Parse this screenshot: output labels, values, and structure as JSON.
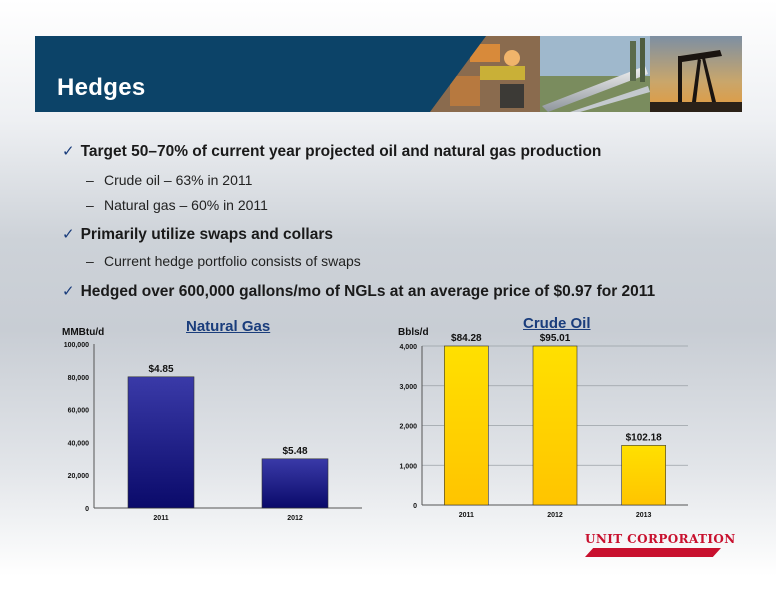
{
  "header": {
    "title": "Hedges"
  },
  "bullets": [
    {
      "level": 1,
      "text": "Target 50–70% of current year projected oil and natural gas production"
    },
    {
      "level": 2,
      "text": "Crude oil – 63% in 2011"
    },
    {
      "level": 2,
      "text": "Natural gas – 60% in 2011"
    },
    {
      "level": 1,
      "text": "Primarily utilize swaps and collars"
    },
    {
      "level": 2,
      "text": "Current hedge portfolio consists of swaps"
    },
    {
      "level": 1,
      "text": "Hedged over 600,000 gallons/mo of NGLs at an average price of $0.97 for 2011"
    }
  ],
  "chart_data": [
    {
      "type": "bar",
      "title": "Natural Gas",
      "ylabel": "MMBtu/d",
      "categories": [
        "2011",
        "2012"
      ],
      "values": [
        80000,
        30000
      ],
      "data_labels": [
        "$4.85",
        "$5.48"
      ],
      "ylim": [
        0,
        100000
      ],
      "yticks": [
        "0",
        "20,000",
        "40,000",
        "60,000",
        "80,000",
        "100,000"
      ],
      "grid": false,
      "colors": {
        "top": "#3a3aa8",
        "bottom": "#0a0a6a"
      }
    },
    {
      "type": "bar",
      "title": "Crude Oil",
      "ylabel": "Bbls/d",
      "categories": [
        "2011",
        "2012",
        "2013"
      ],
      "values": [
        4000,
        4000,
        1500
      ],
      "data_labels": [
        "$84.28",
        "$95.01",
        "$102.18"
      ],
      "ylim": [
        0,
        4000
      ],
      "yticks": [
        "0",
        "1,000",
        "2,000",
        "3,000",
        "4,000"
      ],
      "grid": true,
      "colors": {
        "top": "#ffe000",
        "bottom": "#ffc400"
      }
    }
  ],
  "logo": {
    "text": "UNIT CORPORATION"
  }
}
